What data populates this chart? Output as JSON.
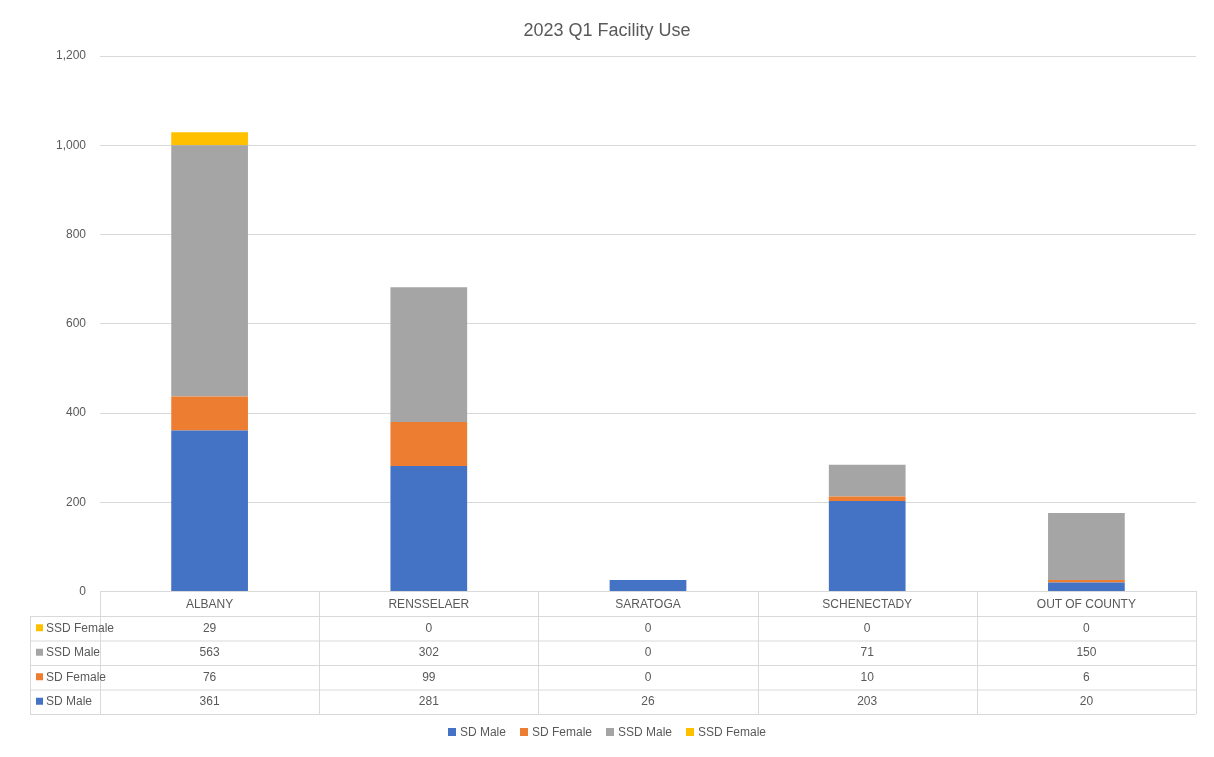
{
  "chart_data": {
    "type": "bar",
    "title": "2023 Q1 Facility Use",
    "stacked": true,
    "data_labels": true,
    "categories": [
      "ALBANY",
      "RENSSELAER",
      "SARATOGA",
      "SCHENECTADY",
      "OUT OF COUNTY"
    ],
    "series": [
      {
        "name": "SD Male",
        "color": "#4472c4",
        "values": [
          361,
          281,
          26,
          203,
          20
        ]
      },
      {
        "name": "SD Female",
        "color": "#ed7d31",
        "values": [
          76,
          99,
          0,
          10,
          6
        ]
      },
      {
        "name": "SSD Male",
        "color": "#a5a5a5",
        "values": [
          563,
          302,
          0,
          71,
          150
        ]
      },
      {
        "name": "SSD Female",
        "color": "#ffc000",
        "values": [
          29,
          0,
          0,
          0,
          0
        ]
      }
    ],
    "ylim": [
      0,
      1200
    ],
    "yticks": [
      0,
      200,
      400,
      600,
      800,
      {
        "value": 1000,
        "label": "1,000"
      },
      {
        "value": 1200,
        "label": "1,200"
      }
    ],
    "grid": "y",
    "legend": "bottom"
  }
}
